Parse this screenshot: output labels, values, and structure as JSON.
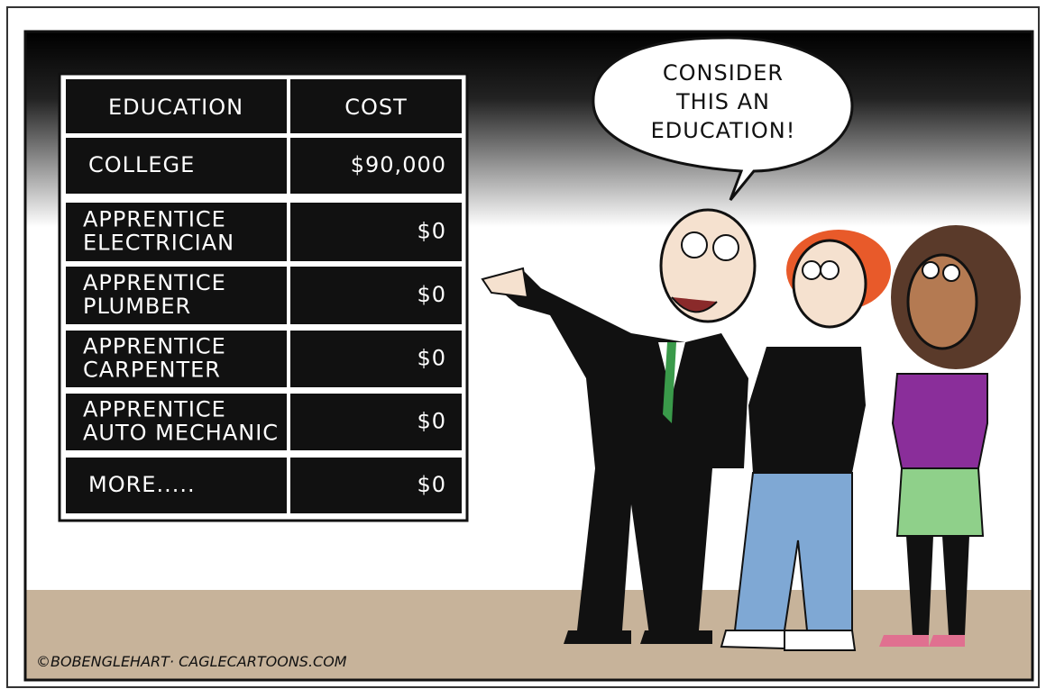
{
  "table": {
    "header": [
      "EDUCATION",
      "COST"
    ],
    "rows": [
      [
        [
          "COLLEGE"
        ],
        "$90,000"
      ],
      [
        [
          "APPRENTICE",
          "ELECTRICIAN"
        ],
        "$0"
      ],
      [
        [
          "APPRENTICE",
          "PLUMBER"
        ],
        "$0"
      ],
      [
        [
          "APPRENTICE",
          "CARPENTER"
        ],
        "$0"
      ],
      [
        [
          "APPRENTICE",
          "AUTO MECHANIC"
        ],
        "$0"
      ],
      [
        [
          "MORE....."
        ],
        "$0"
      ]
    ]
  },
  "speech_bubble": {
    "lines": [
      "CONSIDER",
      "THIS AN",
      "EDUCATION!"
    ]
  },
  "signature": "©BOBENGLEHART· CAGLECARTOONS.COM"
}
